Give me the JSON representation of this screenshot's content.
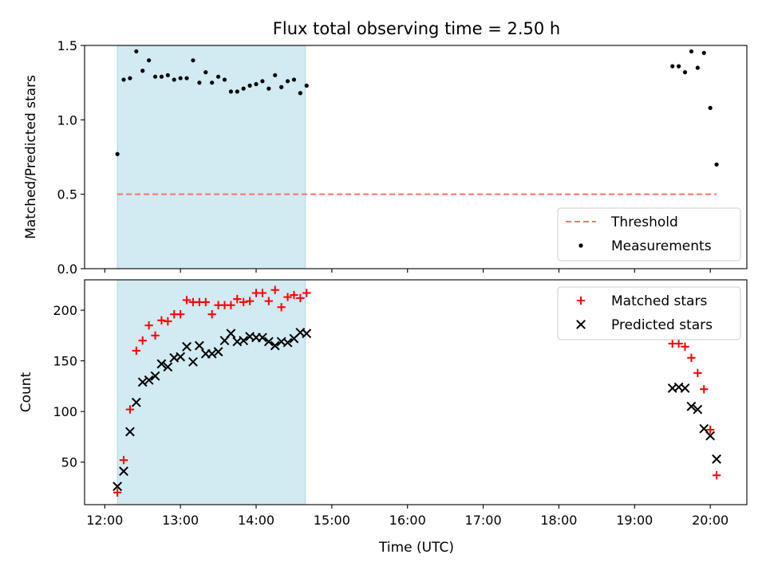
{
  "figure": {
    "title": "Flux total observing time = 2.50 h",
    "xlabel": "Time (UTC)"
  },
  "colors": {
    "shade": "#add8e6",
    "threshold": "#ff6f6f",
    "matched": "#ff0000",
    "predicted": "#000000",
    "measurements": "#000000"
  },
  "chart_data": [
    {
      "type": "scatter",
      "ylabel": "Matched/Predicted stars",
      "xlim": [
        "11:44",
        "20:29"
      ],
      "ylim": [
        0,
        1.5
      ],
      "yticks": [
        0.0,
        0.5,
        1.0,
        1.5
      ],
      "ytick_labels": [
        "0.0",
        "0.5",
        "1.0",
        "1.5"
      ],
      "shaded_interval": [
        "12:10",
        "14:39"
      ],
      "threshold": {
        "name": "Threshold",
        "value": 0.5,
        "x": [
          "12:10",
          "20:05"
        ]
      },
      "legend": {
        "position": "lower right",
        "entries": [
          "Threshold",
          "Measurements"
        ]
      },
      "series": [
        {
          "name": "Measurements",
          "x": [
            "12:10",
            "12:15",
            "12:20",
            "12:25",
            "12:30",
            "12:35",
            "12:40",
            "12:45",
            "12:50",
            "12:55",
            "13:00",
            "13:05",
            "13:10",
            "13:15",
            "13:20",
            "13:25",
            "13:30",
            "13:35",
            "13:40",
            "13:45",
            "13:50",
            "13:55",
            "14:00",
            "14:05",
            "14:10",
            "14:15",
            "14:20",
            "14:25",
            "14:30",
            "14:35",
            "14:40",
            "19:30",
            "19:35",
            "19:40",
            "19:45",
            "19:50",
            "19:55",
            "20:00",
            "20:05"
          ],
          "y": [
            0.77,
            1.27,
            1.28,
            1.46,
            1.33,
            1.4,
            1.29,
            1.29,
            1.3,
            1.27,
            1.28,
            1.28,
            1.4,
            1.25,
            1.32,
            1.25,
            1.29,
            1.27,
            1.19,
            1.19,
            1.21,
            1.23,
            1.24,
            1.26,
            1.21,
            1.3,
            1.22,
            1.26,
            1.27,
            1.18,
            1.23,
            1.36,
            1.36,
            1.32,
            1.46,
            1.35,
            1.45,
            1.08,
            0.7
          ]
        }
      ]
    },
    {
      "type": "scatter",
      "ylabel": "Count",
      "xlim": [
        "11:44",
        "20:29"
      ],
      "ylim": [
        8,
        230
      ],
      "yticks": [
        50,
        100,
        150,
        200
      ],
      "ytick_labels": [
        "50",
        "100",
        "150",
        "200"
      ],
      "xticks": [
        "12:00",
        "13:00",
        "14:00",
        "15:00",
        "16:00",
        "17:00",
        "18:00",
        "19:00",
        "20:00"
      ],
      "shaded_interval": [
        "12:10",
        "14:39"
      ],
      "legend": {
        "position": "upper right",
        "entries": [
          "Matched stars",
          "Predicted stars"
        ]
      },
      "series": [
        {
          "name": "Matched stars",
          "marker": "+",
          "x": [
            "12:10",
            "12:15",
            "12:20",
            "12:25",
            "12:30",
            "12:35",
            "12:40",
            "12:45",
            "12:50",
            "12:55",
            "13:00",
            "13:05",
            "13:10",
            "13:15",
            "13:20",
            "13:25",
            "13:30",
            "13:35",
            "13:40",
            "13:45",
            "13:50",
            "13:55",
            "14:00",
            "14:05",
            "14:10",
            "14:15",
            "14:20",
            "14:25",
            "14:30",
            "14:35",
            "14:40",
            "19:30",
            "19:35",
            "19:40",
            "19:45",
            "19:50",
            "19:55",
            "20:00",
            "20:05"
          ],
          "y": [
            20,
            52,
            102,
            160,
            170,
            185,
            175,
            190,
            189,
            196,
            196,
            210,
            208,
            208,
            208,
            196,
            205,
            205,
            205,
            211,
            208,
            209,
            217,
            217,
            209,
            220,
            203,
            213,
            215,
            212,
            217,
            167,
            167,
            164,
            153,
            138,
            122,
            82,
            37
          ]
        },
        {
          "name": "Predicted stars",
          "marker": "x",
          "x": [
            "12:10",
            "12:15",
            "12:20",
            "12:25",
            "12:30",
            "12:35",
            "12:40",
            "12:45",
            "12:50",
            "12:55",
            "13:00",
            "13:05",
            "13:10",
            "13:15",
            "13:20",
            "13:25",
            "13:30",
            "13:35",
            "13:40",
            "13:45",
            "13:50",
            "13:55",
            "14:00",
            "14:05",
            "14:10",
            "14:15",
            "14:20",
            "14:25",
            "14:30",
            "14:35",
            "14:40",
            "19:30",
            "19:35",
            "19:40",
            "19:45",
            "19:50",
            "19:55",
            "20:00",
            "20:05"
          ],
          "y": [
            26,
            41,
            80,
            109,
            129,
            131,
            135,
            147,
            144,
            153,
            154,
            164,
            149,
            165,
            157,
            157,
            159,
            170,
            177,
            169,
            170,
            174,
            173,
            173,
            169,
            165,
            169,
            168,
            172,
            178,
            177,
            123,
            124,
            123,
            105,
            102,
            83,
            76,
            53
          ]
        }
      ]
    }
  ]
}
